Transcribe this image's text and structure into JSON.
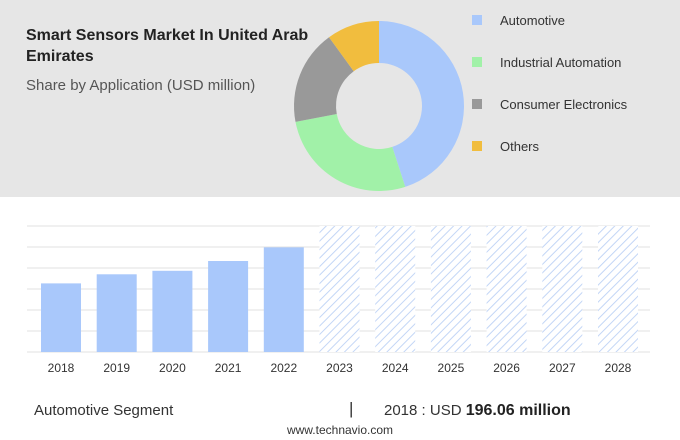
{
  "header": {
    "title": "Smart Sensors Market In United Arab Emirates",
    "subtitle": "Share by Application (USD million)"
  },
  "legend": [
    {
      "label": "Automotive",
      "color": "#a9c8fb"
    },
    {
      "label": "Industrial Automation",
      "color": "#a1f1a8"
    },
    {
      "label": "Consumer Electronics",
      "color": "#999999"
    },
    {
      "label": "Others",
      "color": "#f1bd3e"
    }
  ],
  "footer": {
    "segment": "Automotive Segment",
    "separator": "|",
    "year_label": "2018 : USD",
    "value_text": "196.06 million",
    "source": "www.technavio.com"
  },
  "chart_data": [
    {
      "type": "pie",
      "categories": [
        "Automotive",
        "Industrial Automation",
        "Consumer Electronics",
        "Others"
      ],
      "values": [
        45,
        27,
        18,
        10
      ],
      "colors": [
        "#a9c8fb",
        "#a1f1a8",
        "#999999",
        "#f1bd3e"
      ]
    },
    {
      "type": "bar",
      "categories": [
        "2018",
        "2019",
        "2020",
        "2021",
        "2022",
        "2023",
        "2024",
        "2025",
        "2026",
        "2027",
        "2028"
      ],
      "values": [
        196.06,
        222,
        232,
        260,
        299,
        null,
        null,
        null,
        null,
        null,
        null
      ],
      "forecast_categories": [
        "2023",
        "2024",
        "2025",
        "2026",
        "2027",
        "2028"
      ],
      "bar_color": "#a9c8fb",
      "ylim": [
        0,
        360
      ],
      "grid": true
    }
  ]
}
